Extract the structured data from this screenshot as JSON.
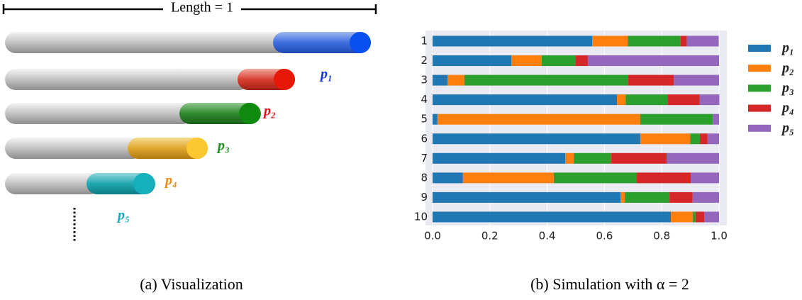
{
  "diagram": {
    "length_label": "Length = 1",
    "labels": [
      "p₁",
      "p₂",
      "p₃",
      "p₄",
      "p₅"
    ]
  },
  "captions": [
    "(a) Visualization",
    "(b) Simulation with α = 2"
  ],
  "chart_data": {
    "type": "bar",
    "orientation": "horizontal",
    "stacked": true,
    "categories": [
      "1",
      "2",
      "3",
      "4",
      "5",
      "6",
      "7",
      "8",
      "9",
      "10"
    ],
    "series": [
      {
        "name": "p₁",
        "color": "#1f77b4",
        "values": [
          0.557,
          0.275,
          0.052,
          0.644,
          0.017,
          0.725,
          0.463,
          0.106,
          0.656,
          0.832
        ]
      },
      {
        "name": "p₂",
        "color": "#ff7f0e",
        "values": [
          0.124,
          0.106,
          0.059,
          0.03,
          0.708,
          0.174,
          0.03,
          0.317,
          0.015,
          0.076
        ]
      },
      {
        "name": "p₃",
        "color": "#2ca02c",
        "values": [
          0.185,
          0.117,
          0.572,
          0.146,
          0.253,
          0.034,
          0.131,
          0.29,
          0.156,
          0.01
        ]
      },
      {
        "name": "p₄",
        "color": "#d62728",
        "values": [
          0.022,
          0.044,
          0.159,
          0.112,
          0,
          0.027,
          0.193,
          0.188,
          0.081,
          0.03
        ]
      },
      {
        "name": "p₅",
        "color": "#9467bd",
        "values": [
          0.111,
          0.458,
          0.158,
          0.069,
          0.022,
          0.04,
          0.183,
          0.099,
          0.092,
          0.052
        ]
      }
    ],
    "xlim": [
      0,
      1
    ],
    "xticks": [
      {
        "value": 0,
        "label": "0.0"
      },
      0.2,
      0.4,
      0.6,
      0.8,
      {
        "value": 1,
        "label": "1.0"
      }
    ],
    "grid": true,
    "legend": "outside-right"
  }
}
